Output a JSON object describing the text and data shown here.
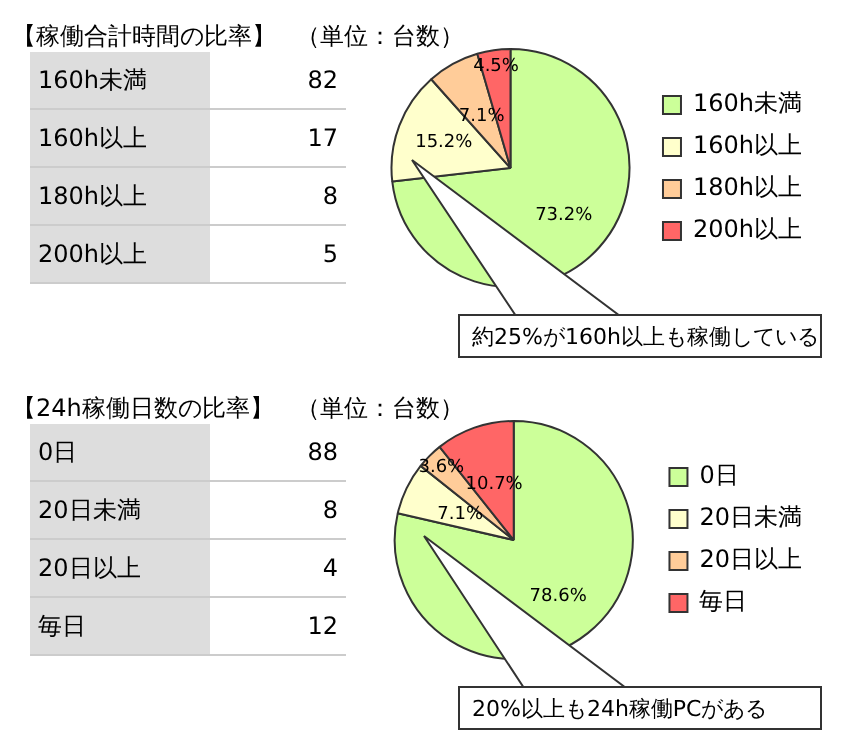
{
  "chart_data": [
    {
      "type": "other",
      "title": "【稼働合計時間の比率】",
      "subtitle": "（単位：台数）",
      "categories": [
        "160h未満",
        "160h以上",
        "180h以上",
        "200h以上"
      ],
      "values": [
        82,
        17,
        8,
        5
      ],
      "data_labels": true
    },
    {
      "type": "pie",
      "categories": [
        "160h未満",
        "160h以上",
        "180h以上",
        "200h以上"
      ],
      "values": [
        73.2,
        15.2,
        7.1,
        4.5
      ],
      "colors": [
        "#ccff99",
        "#ffffcc",
        "#ffcc99",
        "#ff6666"
      ],
      "value_labels": [
        "73.2%",
        "15.2%",
        "7.1%",
        "4.5%"
      ],
      "legend": "right",
      "annotations": [
        "約25%が160h以上も稼働している"
      ]
    },
    {
      "type": "other",
      "title": "【24h稼働日数の比率】",
      "subtitle": "（単位：台数）",
      "categories": [
        "0日",
        "20日未満",
        "20日以上",
        "毎日"
      ],
      "values": [
        88,
        8,
        4,
        12
      ],
      "data_labels": true
    },
    {
      "type": "pie",
      "categories": [
        "0日",
        "20日未満",
        "20日以上",
        "毎日"
      ],
      "values": [
        78.6,
        7.1,
        3.6,
        10.7
      ],
      "colors": [
        "#ccff99",
        "#ffffcc",
        "#ffcc99",
        "#ff6666"
      ],
      "value_labels": [
        "78.6%",
        "7.1%",
        "3.6%",
        "10.7%"
      ],
      "legend": "right",
      "annotations": [
        "20%以上も24h稼働PCがある"
      ]
    }
  ]
}
